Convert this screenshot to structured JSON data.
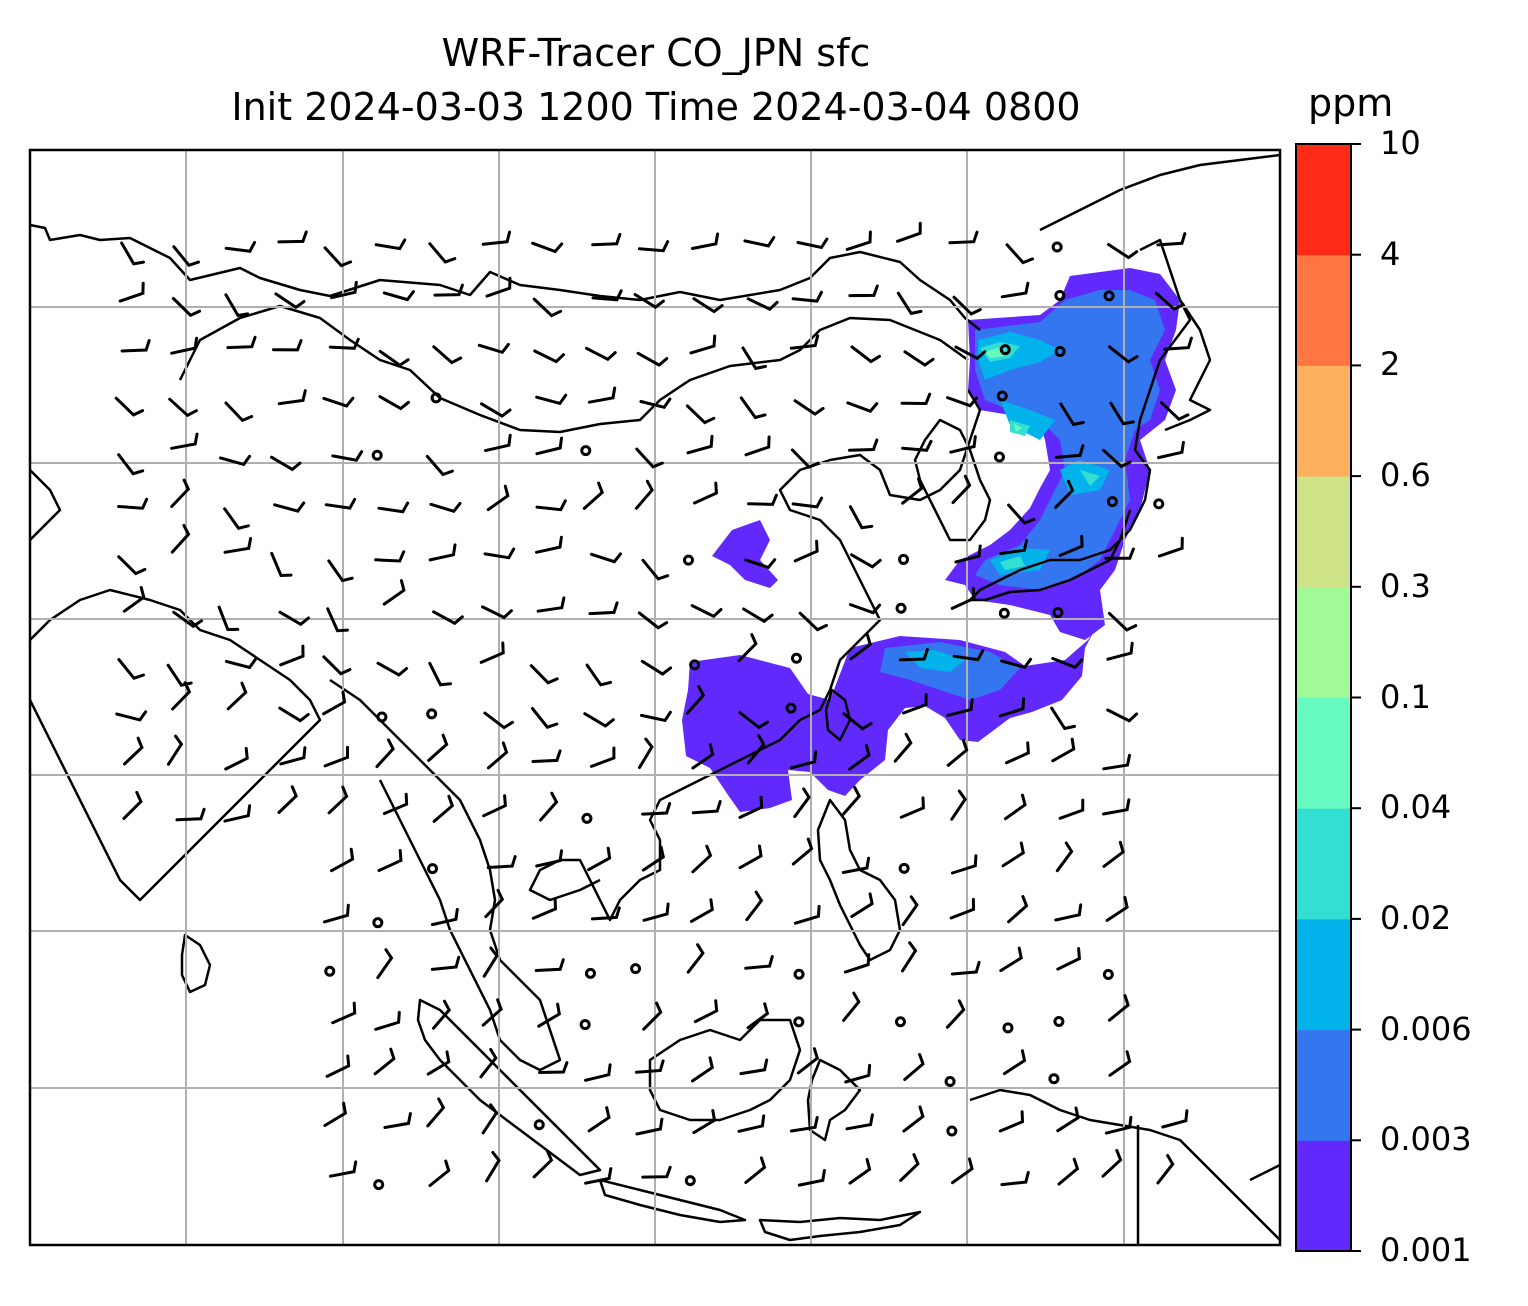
{
  "title": {
    "line1": "WRF-Tracer CO_JPN sfc",
    "line2": "Init 2024-03-03 1200 Time 2024-03-04 0800"
  },
  "colorbar": {
    "unit": "ppm",
    "levels": [
      "0.001",
      "0.003",
      "0.006",
      "0.02",
      "0.04",
      "0.1",
      "0.3",
      "0.6",
      "2",
      "4",
      "10"
    ],
    "colors": [
      "#6129fb",
      "#3475f0",
      "#02b3eb",
      "#33dfd2",
      "#68fbc1",
      "#9ffa97",
      "#cee287",
      "#ffb05f",
      "#ff7640",
      "#ff2b16"
    ]
  },
  "map": {
    "plume_colors": {
      "0.001-0.003": "#6129fb",
      "0.003-0.006": "#3475f0",
      "0.006-0.02": "#02b3eb",
      "0.02-0.04": "#33dfd2",
      "0.04-0.1": "#68fbc1",
      "0.1-0.3": "#9ffa97"
    },
    "gridlines": "on",
    "wind_barbs": "on"
  }
}
